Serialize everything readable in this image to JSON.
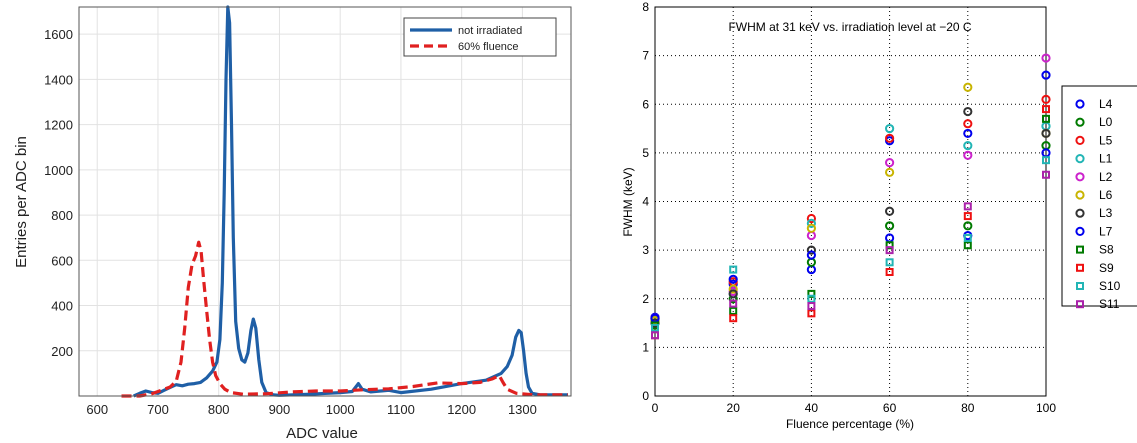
{
  "chart_data": [
    {
      "type": "line",
      "title": "",
      "xlabel": "ADC value",
      "ylabel": "Entries per ADC bin",
      "xlim": [
        570,
        1380
      ],
      "ylim": [
        0,
        1720
      ],
      "xticks": [
        600,
        700,
        800,
        900,
        1000,
        1100,
        1200,
        1300
      ],
      "yticks": [
        200,
        400,
        600,
        800,
        1000,
        1200,
        1400,
        1600
      ],
      "grid": true,
      "legend_position": "top-right",
      "series": [
        {
          "name": "not irradiated",
          "color": "#1f5fa6",
          "style": "solid",
          "points": [
            [
              660,
              0
            ],
            [
              670,
              12
            ],
            [
              680,
              22
            ],
            [
              690,
              15
            ],
            [
              700,
              12
            ],
            [
              710,
              25
            ],
            [
              720,
              38
            ],
            [
              730,
              50
            ],
            [
              740,
              45
            ],
            [
              750,
              52
            ],
            [
              760,
              55
            ],
            [
              770,
              60
            ],
            [
              780,
              80
            ],
            [
              790,
              110
            ],
            [
              797,
              150
            ],
            [
              802,
              250
            ],
            [
              806,
              500
            ],
            [
              809,
              900
            ],
            [
              812,
              1400
            ],
            [
              815,
              1720
            ],
            [
              818,
              1650
            ],
            [
              821,
              1200
            ],
            [
              824,
              700
            ],
            [
              828,
              330
            ],
            [
              833,
              210
            ],
            [
              838,
              160
            ],
            [
              843,
              150
            ],
            [
              848,
              190
            ],
            [
              853,
              290
            ],
            [
              857,
              340
            ],
            [
              861,
              300
            ],
            [
              866,
              160
            ],
            [
              871,
              60
            ],
            [
              878,
              15
            ],
            [
              890,
              5
            ],
            [
              900,
              3
            ],
            [
              950,
              8
            ],
            [
              1000,
              15
            ],
            [
              1020,
              20
            ],
            [
              1030,
              55
            ],
            [
              1036,
              30
            ],
            [
              1050,
              18
            ],
            [
              1080,
              25
            ],
            [
              1100,
              15
            ],
            [
              1150,
              30
            ],
            [
              1200,
              55
            ],
            [
              1240,
              70
            ],
            [
              1265,
              100
            ],
            [
              1275,
              130
            ],
            [
              1283,
              180
            ],
            [
              1289,
              260
            ],
            [
              1294,
              290
            ],
            [
              1298,
              280
            ],
            [
              1302,
              200
            ],
            [
              1306,
              100
            ],
            [
              1310,
              40
            ],
            [
              1316,
              12
            ],
            [
              1330,
              5
            ],
            [
              1375,
              5
            ]
          ]
        },
        {
          "name": "60% fluence",
          "color": "#e02020",
          "style": "dashed",
          "points": [
            [
              640,
              0
            ],
            [
              670,
              0
            ],
            [
              690,
              10
            ],
            [
              700,
              20
            ],
            [
              710,
              30
            ],
            [
              720,
              40
            ],
            [
              730,
              65
            ],
            [
              738,
              150
            ],
            [
              744,
              300
            ],
            [
              750,
              480
            ],
            [
              756,
              580
            ],
            [
              762,
              620
            ],
            [
              767,
              680
            ],
            [
              771,
              640
            ],
            [
              775,
              520
            ],
            [
              780,
              380
            ],
            [
              785,
              250
            ],
            [
              790,
              150
            ],
            [
              795,
              90
            ],
            [
              802,
              55
            ],
            [
              810,
              30
            ],
            [
              820,
              15
            ],
            [
              840,
              8
            ],
            [
              880,
              10
            ],
            [
              920,
              18
            ],
            [
              960,
              22
            ],
            [
              1000,
              22
            ],
            [
              1040,
              28
            ],
            [
              1080,
              32
            ],
            [
              1120,
              42
            ],
            [
              1160,
              58
            ],
            [
              1200,
              55
            ],
            [
              1230,
              60
            ],
            [
              1250,
              75
            ],
            [
              1262,
              90
            ],
            [
              1268,
              60
            ],
            [
              1275,
              30
            ],
            [
              1290,
              12
            ],
            [
              1320,
              5
            ],
            [
              1375,
              5
            ]
          ]
        }
      ]
    },
    {
      "type": "scatter",
      "title": "FWHM at 31 keV vs. irradiation level at −20 C",
      "xlabel": "Fluence percentage (%)",
      "ylabel": "FWHM (keV)",
      "xlim": [
        0,
        100
      ],
      "ylim": [
        0,
        8
      ],
      "xticks": [
        0,
        20,
        40,
        60,
        80,
        100
      ],
      "yticks": [
        0,
        1,
        2,
        3,
        4,
        5,
        6,
        7,
        8
      ],
      "grid": true,
      "legend_position": "right",
      "series": [
        {
          "name": "L4",
          "color": "#0000ee",
          "marker": "circle",
          "points": [
            [
              0,
              1.62
            ],
            [
              20,
              2.3
            ],
            [
              40,
              2.6
            ],
            [
              60,
              5.25
            ],
            [
              80,
              3.3
            ],
            [
              100,
              6.6
            ]
          ]
        },
        {
          "name": "L0",
          "color": "#007a00",
          "marker": "circle",
          "points": [
            [
              0,
              1.58
            ],
            [
              20,
              2.0
            ],
            [
              40,
              2.75
            ],
            [
              60,
              3.5
            ],
            [
              80,
              3.5
            ],
            [
              100,
              5.15
            ]
          ]
        },
        {
          "name": "L5",
          "color": "#ee1111",
          "marker": "circle",
          "points": [
            [
              0,
              1.6
            ],
            [
              20,
              2.35
            ],
            [
              40,
              3.65
            ],
            [
              60,
              5.3
            ],
            [
              80,
              5.6
            ],
            [
              100,
              6.1
            ]
          ]
        },
        {
          "name": "L1",
          "color": "#22b5b5",
          "marker": "circle",
          "points": [
            [
              0,
              1.55
            ],
            [
              20,
              2.1
            ],
            [
              40,
              3.55
            ],
            [
              60,
              5.5
            ],
            [
              80,
              5.15
            ],
            [
              100,
              5.55
            ]
          ]
        },
        {
          "name": "L2",
          "color": "#cc22cc",
          "marker": "circle",
          "points": [
            [
              0,
              1.6
            ],
            [
              20,
              2.15
            ],
            [
              40,
              3.3
            ],
            [
              60,
              4.8
            ],
            [
              80,
              4.95
            ],
            [
              100,
              6.95
            ]
          ]
        },
        {
          "name": "L6",
          "color": "#c8b400",
          "marker": "circle",
          "points": [
            [
              0,
              1.55
            ],
            [
              20,
              2.2
            ],
            [
              40,
              3.45
            ],
            [
              60,
              4.6
            ],
            [
              80,
              6.35
            ],
            [
              100,
              5.4
            ]
          ]
        },
        {
          "name": "L3",
          "color": "#333333",
          "marker": "circle",
          "points": [
            [
              0,
              1.5
            ],
            [
              20,
              2.1
            ],
            [
              40,
              3.0
            ],
            [
              60,
              3.8
            ],
            [
              80,
              5.85
            ],
            [
              100,
              5.4
            ]
          ]
        },
        {
          "name": "L7",
          "color": "#0000ee",
          "marker": "circle",
          "points": [
            [
              0,
              1.6
            ],
            [
              20,
              2.4
            ],
            [
              40,
              2.9
            ],
            [
              60,
              3.25
            ],
            [
              80,
              5.4
            ],
            [
              100,
              5.0
            ]
          ]
        },
        {
          "name": "S8",
          "color": "#007a00",
          "marker": "square",
          "points": [
            [
              0,
              1.45
            ],
            [
              20,
              1.75
            ],
            [
              40,
              2.1
            ],
            [
              60,
              3.1
            ],
            [
              80,
              3.1
            ],
            [
              100,
              5.7
            ]
          ]
        },
        {
          "name": "S9",
          "color": "#ee1111",
          "marker": "square",
          "points": [
            [
              0,
              1.25
            ],
            [
              20,
              1.6
            ],
            [
              40,
              1.7
            ],
            [
              60,
              2.55
            ],
            [
              80,
              3.7
            ],
            [
              100,
              5.9
            ]
          ]
        },
        {
          "name": "S10",
          "color": "#22b5b5",
          "marker": "square",
          "points": [
            [
              0,
              1.4
            ],
            [
              20,
              2.6
            ],
            [
              40,
              2.0
            ],
            [
              60,
              2.75
            ],
            [
              80,
              3.25
            ],
            [
              100,
              4.85
            ]
          ]
        },
        {
          "name": "S11",
          "color": "#aa22aa",
          "marker": "square",
          "points": [
            [
              0,
              1.25
            ],
            [
              20,
              1.9
            ],
            [
              40,
              1.85
            ],
            [
              60,
              3.0
            ],
            [
              80,
              3.9
            ],
            [
              100,
              4.55
            ]
          ]
        }
      ]
    }
  ]
}
